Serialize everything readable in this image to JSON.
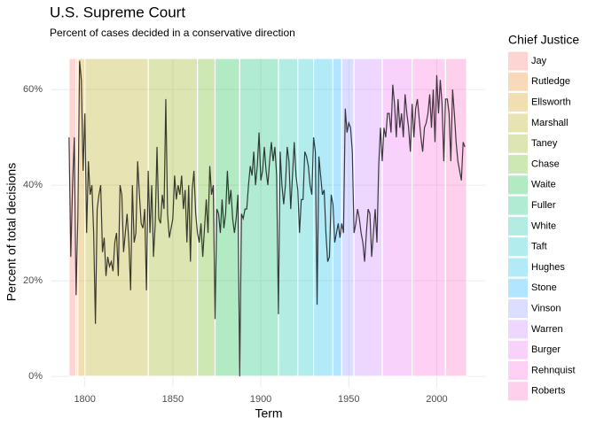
{
  "chart_data": {
    "type": "line",
    "title": "U.S. Supreme Court",
    "subtitle": "Percent of cases decided in a conservative direction",
    "x_label": "Term",
    "y_label": "Percent of total decisions",
    "legend_title": "Chief Justice",
    "color": "#000000",
    "span_opacity": 0.3,
    "grid": true,
    "xlim": [
      1781,
      2028
    ],
    "ylim": [
      -2.2,
      66.5
    ],
    "xticks": [
      1800,
      1850,
      1900,
      1950,
      2000
    ],
    "yticks": [
      {
        "value": 0,
        "label": "0%"
      },
      {
        "value": 20,
        "label": "20%"
      },
      {
        "value": 40,
        "label": "40%"
      },
      {
        "value": 60,
        "label": "60%"
      }
    ],
    "spans": [
      {
        "name": "Jay",
        "start": 1791,
        "end": 1795,
        "color": "#F8766D"
      },
      {
        "name": "Rutledge",
        "start": 1795,
        "end": 1796,
        "color": "#E7861B"
      },
      {
        "name": "Ellsworth",
        "start": 1796,
        "end": 1800,
        "color": "#D09400"
      },
      {
        "name": "Marshall",
        "start": 1800,
        "end": 1836,
        "color": "#B2A100"
      },
      {
        "name": "Taney",
        "start": 1836,
        "end": 1864,
        "color": "#8EAB00"
      },
      {
        "name": "Chase",
        "start": 1864,
        "end": 1874,
        "color": "#5BB300"
      },
      {
        "name": "Waite",
        "start": 1874,
        "end": 1888,
        "color": "#00B93A"
      },
      {
        "name": "Fuller",
        "start": 1888,
        "end": 1910,
        "color": "#00BE70"
      },
      {
        "name": "White",
        "start": 1910,
        "end": 1921,
        "color": "#00C1A0"
      },
      {
        "name": "Taft",
        "start": 1921,
        "end": 1930,
        "color": "#00BFC4"
      },
      {
        "name": "Hughes",
        "start": 1930,
        "end": 1941,
        "color": "#00B8E7"
      },
      {
        "name": "Stone",
        "start": 1941,
        "end": 1946,
        "color": "#00A9FF"
      },
      {
        "name": "Vinson",
        "start": 1946,
        "end": 1953,
        "color": "#8B93FF"
      },
      {
        "name": "Warren",
        "start": 1953,
        "end": 1969,
        "color": "#C77CFF"
      },
      {
        "name": "Burger",
        "start": 1969,
        "end": 1986,
        "color": "#E76BF3"
      },
      {
        "name": "Rehnquist",
        "start": 1986,
        "end": 2005,
        "color": "#FA62DB"
      },
      {
        "name": "Roberts",
        "start": 2005,
        "end": 2017,
        "color": "#FF62BC"
      }
    ],
    "x": [
      1791,
      1792,
      1793,
      1794,
      1795,
      1796,
      1797,
      1798,
      1799,
      1800,
      1801,
      1802,
      1803,
      1804,
      1805,
      1806,
      1807,
      1808,
      1809,
      1810,
      1811,
      1812,
      1813,
      1814,
      1815,
      1816,
      1817,
      1818,
      1819,
      1820,
      1821,
      1822,
      1823,
      1824,
      1825,
      1826,
      1827,
      1828,
      1829,
      1830,
      1831,
      1832,
      1833,
      1834,
      1835,
      1836,
      1837,
      1838,
      1839,
      1840,
      1841,
      1842,
      1843,
      1844,
      1845,
      1846,
      1847,
      1848,
      1849,
      1850,
      1851,
      1852,
      1853,
      1854,
      1855,
      1856,
      1857,
      1858,
      1859,
      1860,
      1861,
      1862,
      1863,
      1864,
      1865,
      1866,
      1867,
      1868,
      1869,
      1870,
      1871,
      1872,
      1873,
      1874,
      1875,
      1876,
      1877,
      1878,
      1879,
      1880,
      1881,
      1882,
      1883,
      1884,
      1885,
      1886,
      1887,
      1888,
      1889,
      1890,
      1891,
      1892,
      1893,
      1894,
      1895,
      1896,
      1897,
      1898,
      1899,
      1900,
      1901,
      1902,
      1903,
      1904,
      1905,
      1906,
      1907,
      1908,
      1909,
      1910,
      1911,
      1912,
      1913,
      1914,
      1915,
      1916,
      1917,
      1918,
      1919,
      1920,
      1921,
      1922,
      1923,
      1924,
      1925,
      1926,
      1927,
      1928,
      1929,
      1930,
      1931,
      1932,
      1933,
      1934,
      1935,
      1936,
      1937,
      1938,
      1939,
      1940,
      1941,
      1942,
      1943,
      1944,
      1945,
      1946,
      1947,
      1948,
      1949,
      1950,
      1951,
      1952,
      1953,
      1954,
      1955,
      1956,
      1957,
      1958,
      1959,
      1960,
      1961,
      1962,
      1963,
      1964,
      1965,
      1966,
      1967,
      1968,
      1969,
      1970,
      1971,
      1972,
      1973,
      1974,
      1975,
      1976,
      1977,
      1978,
      1979,
      1980,
      1981,
      1982,
      1983,
      1984,
      1985,
      1986,
      1987,
      1988,
      1989,
      1990,
      1991,
      1992,
      1993,
      1994,
      1995,
      1996,
      1997,
      1998,
      1999,
      2000,
      2001,
      2002,
      2003,
      2004,
      2005,
      2006,
      2007,
      2008,
      2009,
      2010,
      2011,
      2012,
      2013,
      2014,
      2015,
      2016
    ],
    "values": [
      50,
      25,
      40,
      50,
      17,
      33,
      66,
      62,
      43,
      55,
      30,
      45,
      38,
      40,
      30,
      11,
      35,
      38,
      40,
      26,
      29,
      21,
      25,
      23,
      24,
      22,
      28,
      30,
      21,
      40,
      38,
      26,
      30,
      34,
      28,
      18,
      40,
      28,
      30,
      45,
      38,
      32,
      31,
      35,
      18,
      43,
      30,
      40,
      25,
      32,
      48,
      33,
      32,
      38,
      35,
      58,
      34,
      29,
      31,
      33,
      42,
      37,
      40,
      38,
      42,
      35,
      39,
      28,
      40,
      24,
      39,
      43,
      34,
      30,
      28,
      32,
      25,
      31,
      37,
      30,
      44,
      38,
      40,
      12,
      35,
      34,
      30,
      37,
      31,
      34,
      43,
      36,
      39,
      33,
      30,
      33,
      38,
      0,
      34,
      33,
      35,
      35,
      40,
      44,
      42,
      47,
      40,
      44,
      51,
      41,
      43,
      48,
      43,
      40,
      45,
      49,
      45,
      48,
      42,
      13,
      47,
      40,
      36,
      40,
      48,
      45,
      35,
      42,
      49,
      42,
      39,
      30,
      37,
      37,
      47,
      46,
      44,
      40,
      38,
      50,
      47,
      15,
      46,
      42,
      38,
      39,
      30,
      24,
      25,
      38,
      36,
      28,
      30,
      32,
      29,
      32,
      30,
      56,
      51,
      53,
      52,
      47,
      30,
      32,
      35,
      33,
      30,
      28,
      24,
      30,
      35,
      34,
      25,
      30,
      35,
      28,
      44,
      52,
      45,
      52,
      50,
      55,
      55,
      51,
      61,
      57,
      50,
      58,
      52,
      55,
      50,
      59,
      55,
      52,
      47,
      57,
      50,
      56,
      58,
      54,
      50,
      47,
      52,
      53,
      55,
      59,
      52,
      60,
      49,
      63,
      55,
      62,
      57,
      45,
      58,
      58,
      55,
      45,
      60,
      55,
      49,
      45,
      43,
      41,
      49,
      48
    ]
  }
}
